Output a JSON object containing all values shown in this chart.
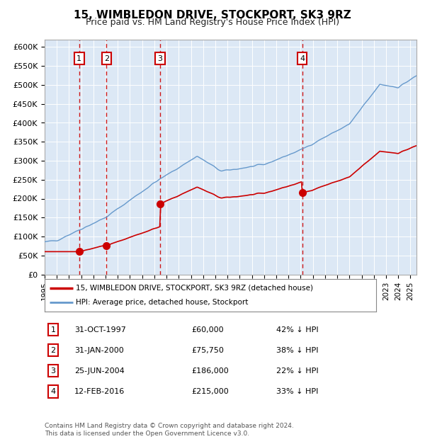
{
  "title": "15, WIMBLEDON DRIVE, STOCKPORT, SK3 9RZ",
  "subtitle": "Price paid vs. HM Land Registry's House Price Index (HPI)",
  "footer": "Contains HM Land Registry data © Crown copyright and database right 2024.\nThis data is licensed under the Open Government Licence v3.0.",
  "sale_dates": [
    1997.83,
    2000.08,
    2004.48,
    2016.12
  ],
  "sale_prices": [
    60000,
    75750,
    186000,
    215000
  ],
  "sale_dates_str": [
    "31-OCT-1997",
    "31-JAN-2000",
    "25-JUN-2004",
    "12-FEB-2016"
  ],
  "sale_prices_str": [
    "£60,000",
    "£75,750",
    "£186,000",
    "£215,000"
  ],
  "sale_hpi_str": [
    "42% ↓ HPI",
    "38% ↓ HPI",
    "22% ↓ HPI",
    "33% ↓ HPI"
  ],
  "hpi_color": "#6699cc",
  "sale_color": "#cc0000",
  "vline_color": "#cc0000",
  "background_color": "#dce8f5",
  "ylim": [
    0,
    620000
  ],
  "xlim_start": 1995.0,
  "xlim_end": 2025.5,
  "yticks": [
    0,
    50000,
    100000,
    150000,
    200000,
    250000,
    300000,
    350000,
    400000,
    450000,
    500000,
    550000,
    600000
  ],
  "ytick_labels": [
    "£0",
    "£50K",
    "£100K",
    "£150K",
    "£200K",
    "£250K",
    "£300K",
    "£350K",
    "£400K",
    "£450K",
    "£500K",
    "£550K",
    "£600K"
  ],
  "legend_property_label": "15, WIMBLEDON DRIVE, STOCKPORT, SK3 9RZ (detached house)",
  "legend_hpi_label": "HPI: Average price, detached house, Stockport"
}
